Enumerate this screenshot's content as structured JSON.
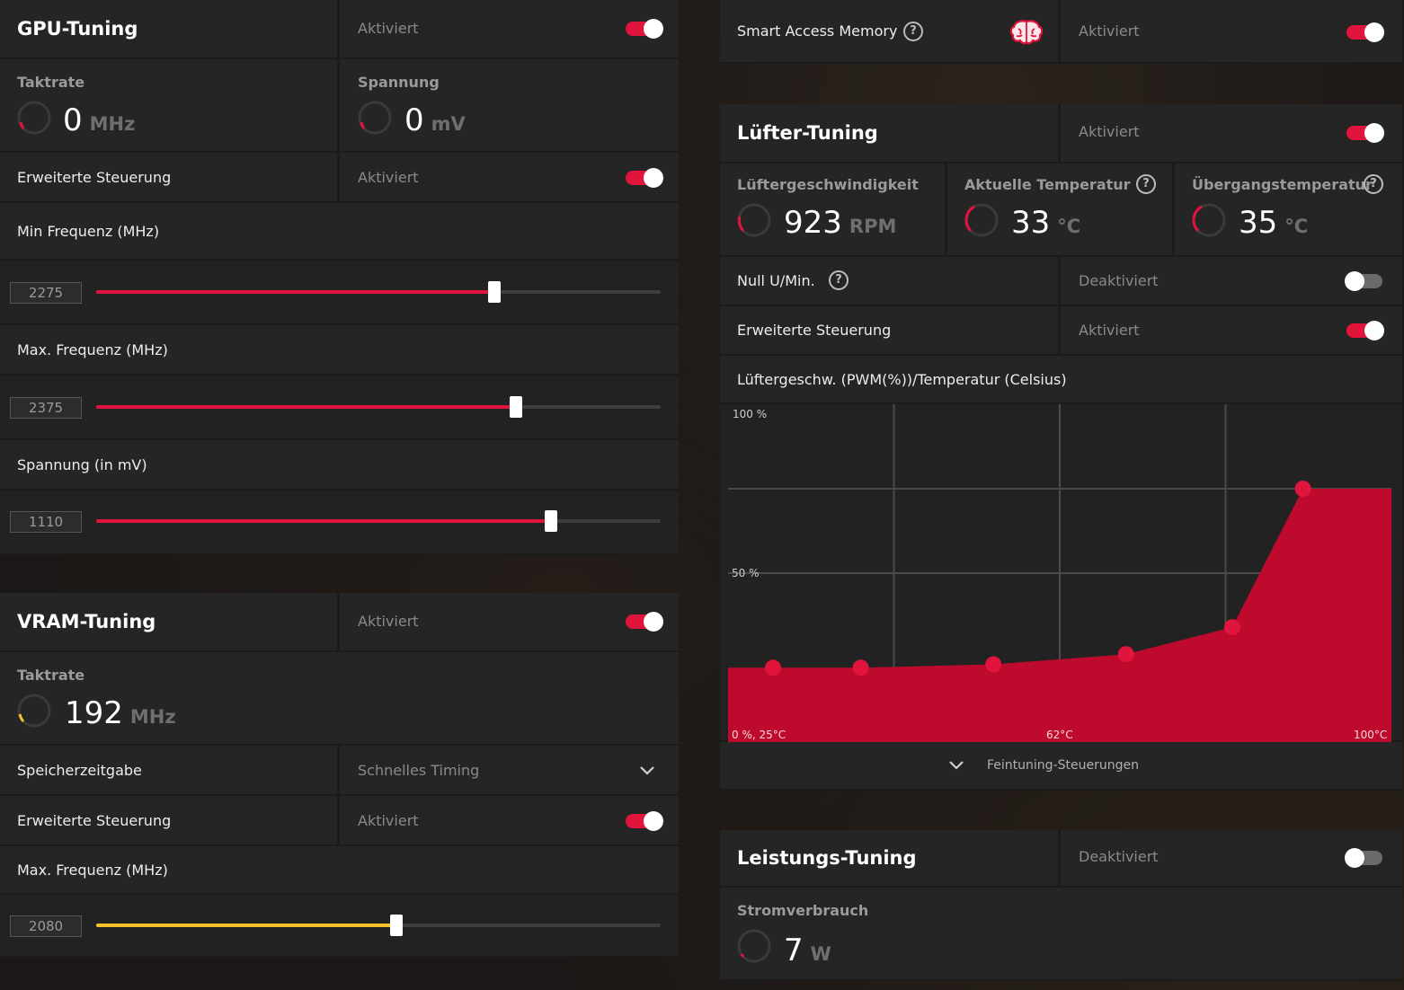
{
  "gpu": {
    "title": "GPU-Tuning",
    "status": "Aktiviert",
    "enabled": true,
    "clock": {
      "label": "Taktrate",
      "value": "0",
      "unit": "MHz"
    },
    "voltage": {
      "label": "Spannung",
      "value": "0",
      "unit": "mV"
    },
    "advanced": {
      "label": "Erweiterte Steuerung",
      "status": "Aktiviert",
      "enabled": true
    },
    "min_freq": {
      "label": "Min Frequenz (MHz)",
      "value": "2275",
      "fraction": 0.705
    },
    "max_freq": {
      "label": "Max. Frequenz (MHz)",
      "value": "2375",
      "fraction": 0.743
    },
    "voltage_slider": {
      "label": "Spannung (in mV)",
      "value": "1110",
      "fraction": 0.805
    }
  },
  "vram": {
    "title": "VRAM-Tuning",
    "status": "Aktiviert",
    "enabled": true,
    "clock": {
      "label": "Taktrate",
      "value": "192",
      "unit": "MHz"
    },
    "timing": {
      "label": "Speicherzeitgabe",
      "value": "Schnelles Timing"
    },
    "advanced": {
      "label": "Erweiterte Steuerung",
      "status": "Aktiviert",
      "enabled": true
    },
    "max_freq": {
      "label": "Max. Frequenz (MHz)",
      "value": "2080",
      "fraction": 0.532
    }
  },
  "sam": {
    "label": "Smart Access Memory",
    "status": "Aktiviert",
    "enabled": true,
    "icon": "brain-icon"
  },
  "fan": {
    "title": "Lüfter-Tuning",
    "status": "Aktiviert",
    "enabled": true,
    "speed": {
      "label": "Lüftergeschwindigkeit",
      "value": "923",
      "unit": "RPM"
    },
    "temp": {
      "label": "Aktuelle Temperatur",
      "value": "33",
      "unit": "°C"
    },
    "junction": {
      "label": "Übergangstemperatur",
      "value": "35",
      "unit": "°C"
    },
    "zero_rpm": {
      "label": "Null U/Min.",
      "status": "Deaktiviert",
      "enabled": false
    },
    "advanced": {
      "label": "Erweiterte Steuerung",
      "status": "Aktiviert",
      "enabled": true
    },
    "curve_title": "Lüftergeschw. (PWM(%))/Temperatur (Celsius)",
    "finetune": "Feintuning-Steuerungen"
  },
  "power": {
    "title": "Leistungs-Tuning",
    "status": "Deaktiviert",
    "enabled": false,
    "draw": {
      "label": "Stromverbrauch",
      "value": "7",
      "unit": "W"
    }
  },
  "colors": {
    "accent": "#e0143c",
    "vram_accent": "#f5c22b",
    "panel": "#252525"
  },
  "chart_data": {
    "type": "area",
    "x": [
      25,
      40,
      55,
      70,
      82,
      90
    ],
    "y": [
      22,
      22,
      23,
      26,
      34,
      75
    ],
    "xlim": [
      25,
      100
    ],
    "ylim": [
      0,
      100
    ],
    "y_tick_labels": [
      "100 %",
      "50 %"
    ],
    "x_tick_labels": [
      "0 %, 25°C",
      "62°C",
      "100°C"
    ],
    "grid": true
  }
}
